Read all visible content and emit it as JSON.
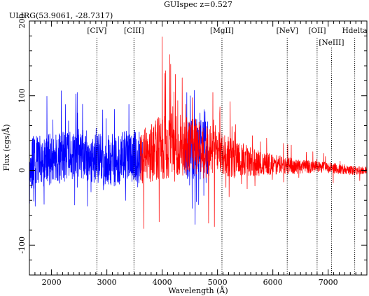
{
  "chart_data": {
    "type": "line",
    "title": "GUIspec z=0.527",
    "object_label": "ULIRG(53.9061, -28.7317)",
    "xlabel": "Wavelength (Å)",
    "ylabel": "Flux (cgs/Å)",
    "xlim": [
      1600,
      7700
    ],
    "ylim": [
      -140,
      200
    ],
    "x_ticks": [
      2000,
      3000,
      4000,
      5000,
      6000,
      7000
    ],
    "x_tick_labels": [
      "2000",
      "3000",
      "4000",
      "5000",
      "6000",
      "7000"
    ],
    "y_ticks": [
      -100,
      0,
      100,
      200
    ],
    "y_tick_labels": [
      "-100",
      "0",
      "100",
      "200"
    ],
    "grid": false,
    "series": [
      {
        "color": "#0000ff",
        "segments": [
          {
            "x_start": 1600,
            "x_end": 3650,
            "points": [
              [
                1600,
                10
              ],
              [
                1800,
                12
              ],
              [
                2000,
                15
              ],
              [
                2200,
                18
              ],
              [
                2400,
                20
              ],
              [
                2600,
                22
              ],
              [
                2800,
                15
              ],
              [
                3000,
                12
              ],
              [
                3200,
                15
              ],
              [
                3400,
                20
              ],
              [
                3650,
                15
              ]
            ],
            "amplitude": 35,
            "spike_rate": 0.06,
            "spike_amp": 45
          }
        ]
      },
      {
        "color": "#0000ff",
        "segments": [
          {
            "x_start": 4400,
            "x_end": 4850,
            "points": [
              [
                4400,
                25
              ],
              [
                4600,
                30
              ],
              [
                4850,
                25
              ]
            ],
            "amplitude": 40,
            "spike_rate": 0.08,
            "spike_amp": 50
          }
        ]
      },
      {
        "color": "#ff0000",
        "segments": [
          {
            "x_start": 3600,
            "x_end": 7700,
            "points": [
              [
                3600,
                15
              ],
              [
                3800,
                25
              ],
              [
                4000,
                30
              ],
              [
                4300,
                35
              ],
              [
                4700,
                30
              ],
              [
                5000,
                25
              ],
              [
                5300,
                15
              ],
              [
                5600,
                12
              ],
              [
                6000,
                8
              ],
              [
                6500,
                5
              ],
              [
                7000,
                4
              ],
              [
                7400,
                0
              ],
              [
                7700,
                0
              ]
            ],
            "amplitude_points": [
              [
                3600,
                35
              ],
              [
                4000,
                45
              ],
              [
                4500,
                40
              ],
              [
                5000,
                30
              ],
              [
                5500,
                22
              ],
              [
                6000,
                14
              ],
              [
                6500,
                9
              ],
              [
                7000,
                7
              ],
              [
                7700,
                5
              ]
            ],
            "spike_rate": 0.05
          }
        ]
      }
    ],
    "emission_lines": [
      {
        "label": "[CIV]",
        "x": 2820,
        "row": 0
      },
      {
        "label": "[CIII]",
        "x": 3490,
        "row": 0
      },
      {
        "label": "[MgII]",
        "x": 5080,
        "row": 0
      },
      {
        "label": "[NeV]",
        "x": 6260,
        "row": 0
      },
      {
        "label": "[OII]",
        "x": 6800,
        "row": 0
      },
      {
        "label": "[NeIII]",
        "x": 7060,
        "row": 1
      },
      {
        "label": "Hdelta",
        "x": 7480,
        "row": 0
      }
    ]
  }
}
